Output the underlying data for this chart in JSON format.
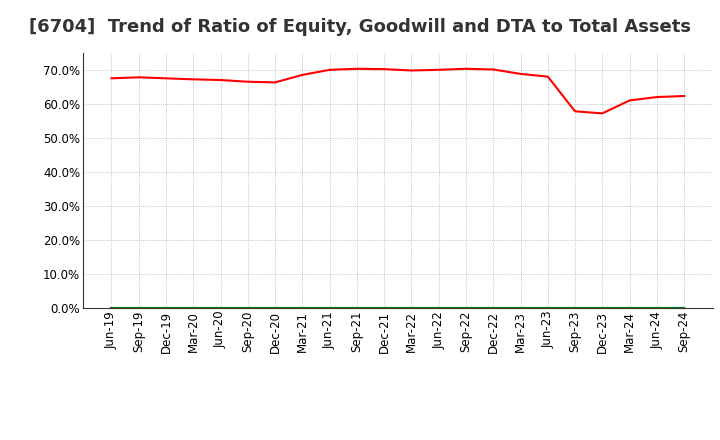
{
  "title": "[6704]  Trend of Ratio of Equity, Goodwill and DTA to Total Assets",
  "x_labels": [
    "Jun-19",
    "Sep-19",
    "Dec-19",
    "Mar-20",
    "Jun-20",
    "Sep-20",
    "Dec-20",
    "Mar-21",
    "Jun-21",
    "Sep-21",
    "Dec-21",
    "Mar-22",
    "Jun-22",
    "Sep-22",
    "Dec-22",
    "Mar-23",
    "Jun-23",
    "Sep-23",
    "Dec-23",
    "Mar-24",
    "Jun-24",
    "Sep-24"
  ],
  "equity": [
    67.5,
    67.8,
    67.5,
    67.2,
    67.0,
    66.5,
    66.3,
    68.5,
    70.0,
    70.3,
    70.2,
    69.8,
    70.0,
    70.3,
    70.1,
    68.8,
    68.0,
    57.8,
    57.2,
    61.0,
    62.0,
    62.3
  ],
  "goodwill": [
    0,
    0,
    0,
    0,
    0,
    0,
    0,
    0,
    0,
    0,
    0,
    0,
    0,
    0,
    0,
    0,
    0,
    0,
    0,
    0,
    0,
    0
  ],
  "dta": [
    0,
    0,
    0,
    0,
    0,
    0,
    0,
    0,
    0,
    0,
    0,
    0,
    0,
    0,
    0,
    0,
    0,
    0,
    0,
    0,
    0,
    0
  ],
  "equity_color": "#FF0000",
  "goodwill_color": "#0000FF",
  "dta_color": "#008000",
  "ylim": [
    0,
    75
  ],
  "yticks": [
    0,
    10,
    20,
    30,
    40,
    50,
    60,
    70
  ],
  "background_color": "#FFFFFF",
  "plot_bg_color": "#FFFFFF",
  "grid_color": "#999999",
  "title_fontsize": 13,
  "axis_fontsize": 8.5,
  "legend_fontsize": 9.5
}
